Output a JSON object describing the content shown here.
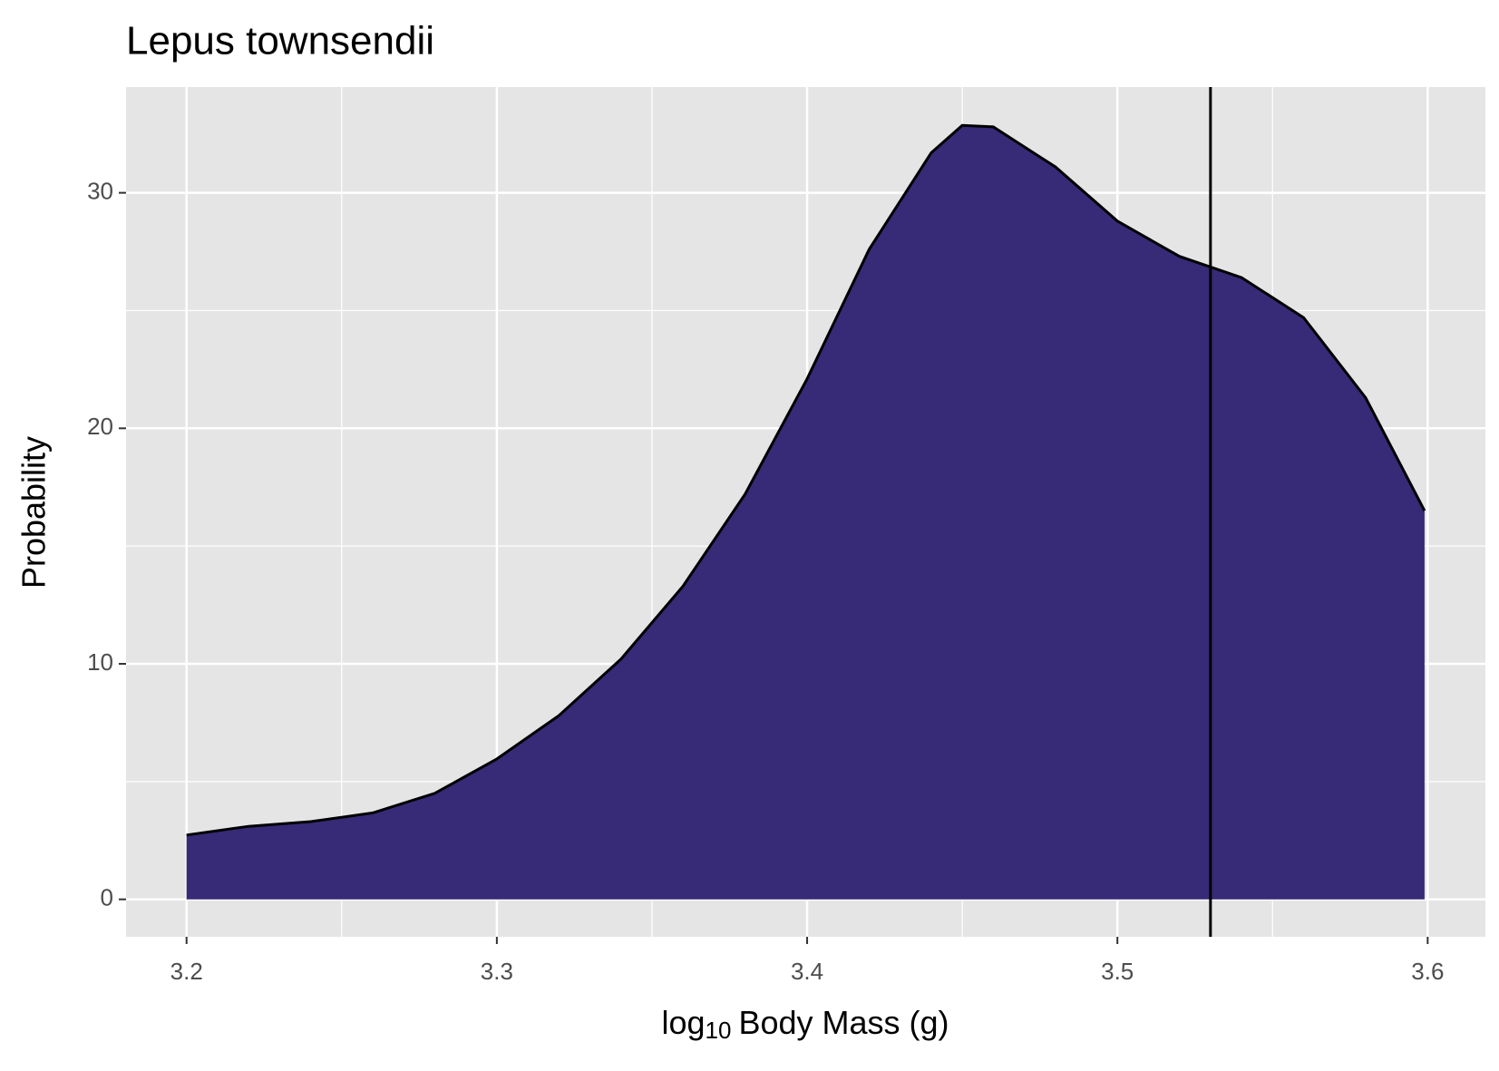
{
  "chart_data": {
    "type": "area",
    "title": "Lepus townsendii",
    "xlabel": {
      "base": "log",
      "sub": "10",
      "rest": "Body Mass (g)"
    },
    "ylabel": "Probability",
    "x": [
      3.2,
      3.22,
      3.24,
      3.26,
      3.28,
      3.3,
      3.32,
      3.34,
      3.36,
      3.38,
      3.4,
      3.42,
      3.44,
      3.45,
      3.46,
      3.48,
      3.5,
      3.52,
      3.54,
      3.56,
      3.58,
      3.599
    ],
    "values": [
      2.73,
      3.1,
      3.3,
      3.67,
      4.5,
      5.96,
      7.8,
      10.2,
      13.3,
      17.2,
      22.1,
      27.6,
      31.7,
      32.86,
      32.8,
      31.1,
      28.8,
      27.3,
      26.4,
      24.7,
      21.3,
      16.5
    ],
    "color": "#372a77",
    "line_color": "#000000",
    "vline": 3.53,
    "xlim": [
      3.1805,
      3.6186
    ],
    "ylim": [
      -1.59,
      34.49
    ],
    "xticks": [
      3.2,
      3.3,
      3.4,
      3.5,
      3.6
    ],
    "yticks": [
      0,
      10,
      20,
      30
    ],
    "xminor": [
      3.25,
      3.35,
      3.45,
      3.55
    ],
    "yminor": [
      5,
      15,
      25
    ],
    "grid": true
  }
}
